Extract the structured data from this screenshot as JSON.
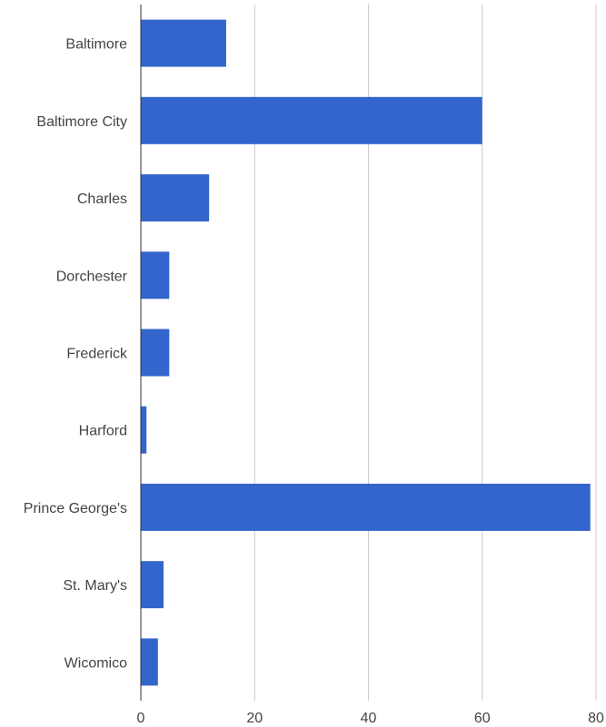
{
  "chart_data": {
    "type": "bar",
    "orientation": "horizontal",
    "title": "",
    "xlabel": "",
    "ylabel": "",
    "categories": [
      "Baltimore",
      "Baltimore City",
      "Charles",
      "Dorchester",
      "Frederick",
      "Harford",
      "Prince George's",
      "St. Mary's",
      "Wicomico"
    ],
    "values": [
      15,
      60,
      12,
      5,
      5,
      1,
      79,
      4,
      3
    ],
    "xlim": [
      0,
      80
    ],
    "xticks": [
      0,
      20,
      40,
      60,
      80
    ],
    "grid": true,
    "legend": "none",
    "bar_color": "#3366cc"
  }
}
